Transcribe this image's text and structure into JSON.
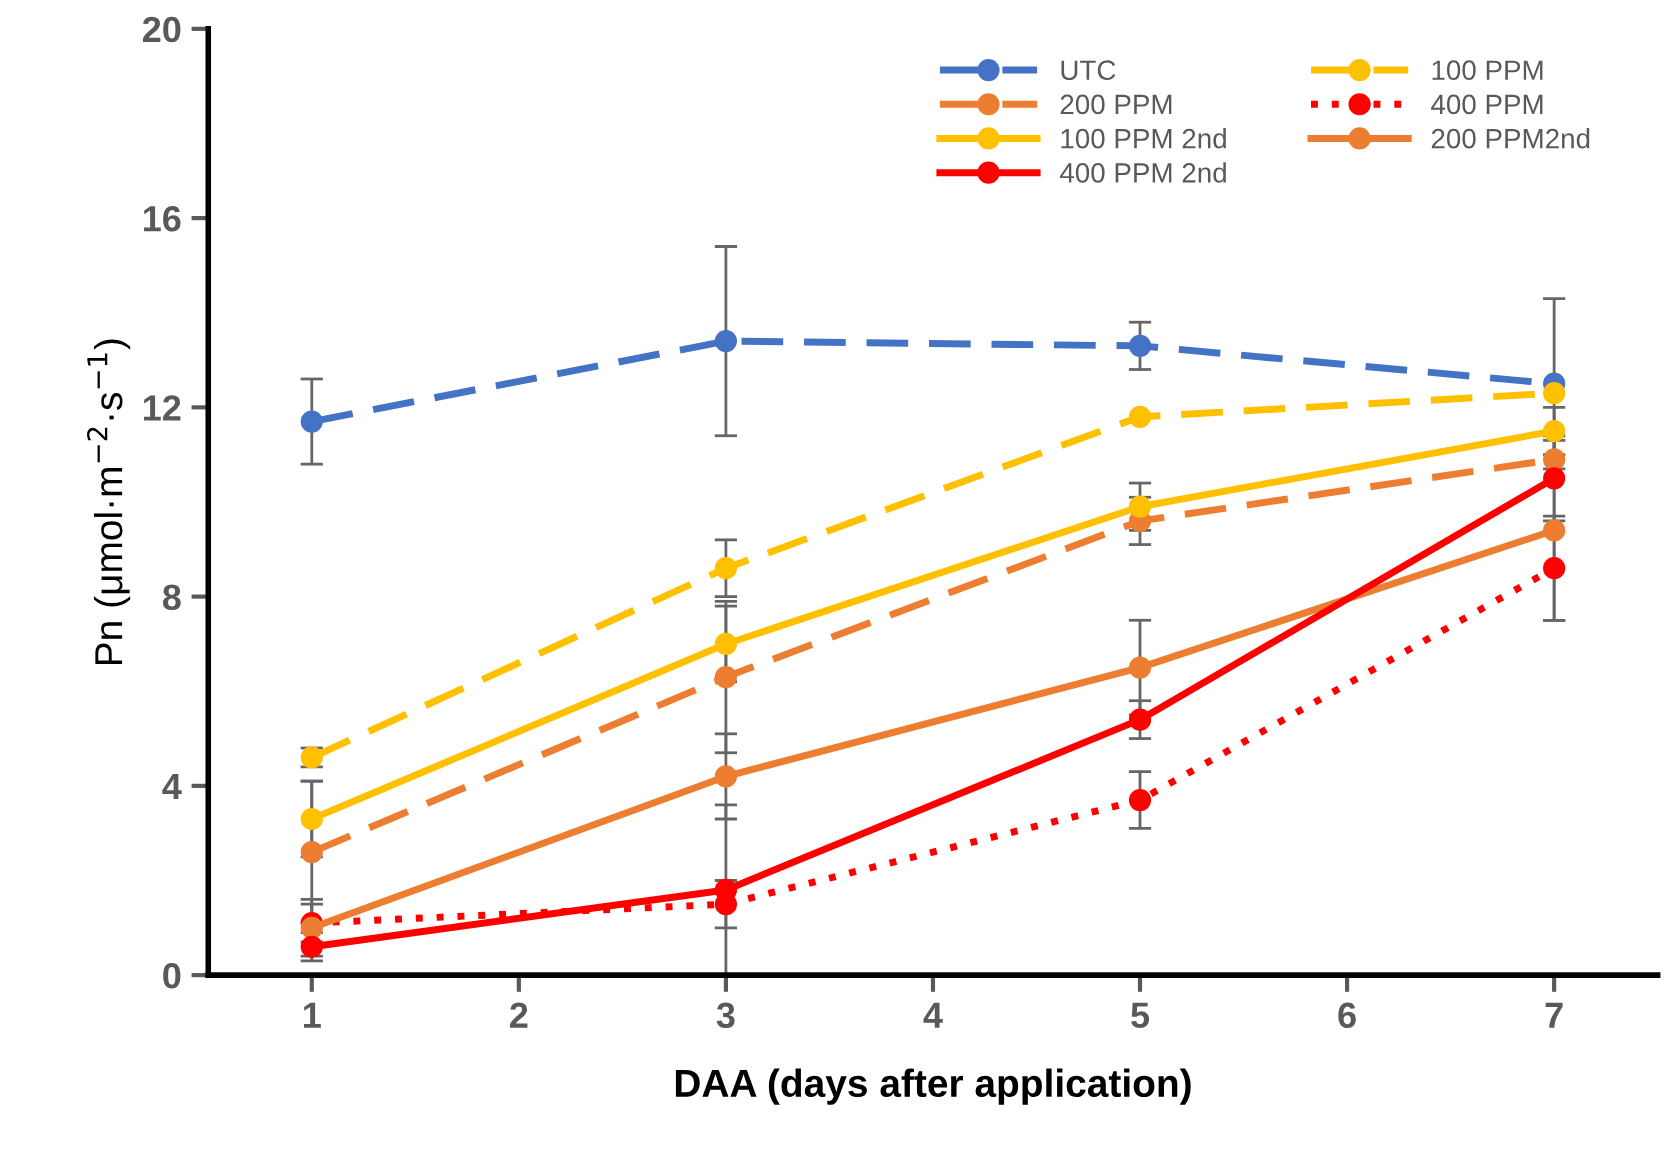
{
  "chart_data": {
    "type": "line",
    "xlabel": "DAA (days after application)",
    "ylabel": "Pn (μmol·m$^{−2}$·s$^{−1}$)",
    "x": [
      1,
      3,
      5,
      7
    ],
    "xlim": [
      0.5,
      7.5
    ],
    "xticks": [
      1,
      2,
      3,
      4,
      5,
      6,
      7
    ],
    "ylim": [
      0,
      20
    ],
    "yticks": [
      0,
      4,
      8,
      12,
      16,
      20
    ],
    "grid": false,
    "legend": "top right",
    "marker": "circle",
    "series": [
      {
        "name": "UTC",
        "color": "#4472c4",
        "line_style": "dashed",
        "values": [
          11.7,
          13.4,
          13.3,
          12.5
        ],
        "errors": [
          0.9,
          2.0,
          0.5,
          1.8
        ]
      },
      {
        "name": "100 PPM",
        "color": "#ffc000",
        "line_style": "dashed",
        "values": [
          4.6,
          8.6,
          11.8,
          12.3
        ],
        "errors": [
          0.2,
          0.6,
          null,
          null
        ]
      },
      {
        "name": "200 PPM",
        "color": "#ed7d31",
        "line_style": "dashed",
        "values": [
          2.6,
          6.3,
          9.6,
          10.9
        ],
        "errors": [
          1.5,
          1.6,
          0.5,
          null
        ]
      },
      {
        "name": "400 PPM",
        "color": "#ff0000",
        "line_style": "dotted",
        "values": [
          1.1,
          1.5,
          3.7,
          8.6
        ],
        "errors": [
          0.4,
          0.5,
          0.6,
          1.1
        ]
      },
      {
        "name": "100 PPM 2nd",
        "color": "#ffc000",
        "line_style": "solid",
        "values": [
          3.3,
          7.0,
          9.9,
          11.5
        ],
        "errors": [
          0.8,
          0.8,
          0.5,
          0.5
        ]
      },
      {
        "name": "200 PPM2nd",
        "color": "#ed7d31",
        "line_style": "solid",
        "values": [
          1.0,
          4.2,
          6.5,
          9.4
        ],
        "errors": [
          0.6,
          0.9,
          1.0,
          1.9
        ]
      },
      {
        "name": "400 PPM 2nd",
        "color": "#ff0000",
        "line_style": "solid",
        "values": [
          0.6,
          1.8,
          5.4,
          10.5
        ],
        "errors": [
          0.3,
          1.8,
          0.4,
          0.9
        ]
      }
    ]
  }
}
